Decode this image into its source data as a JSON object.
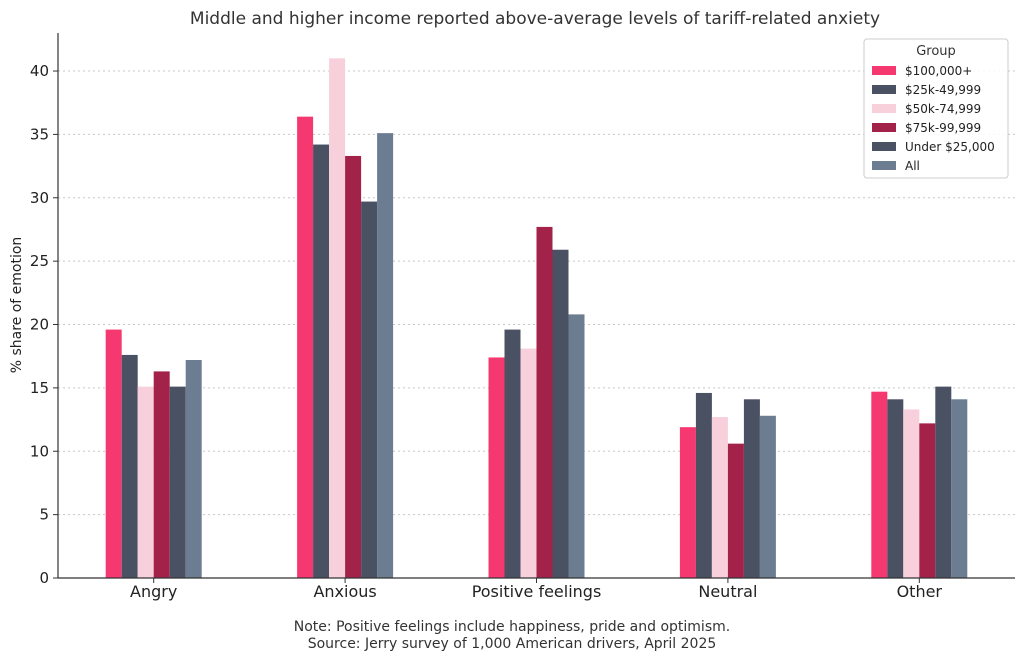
{
  "chart_data": {
    "type": "bar",
    "title": "Middle and higher income reported above-average levels of tariff-related anxiety",
    "xlabel": "",
    "ylabel": "% share of emotion",
    "ylim": [
      0,
      43
    ],
    "yticks": [
      0,
      5,
      10,
      15,
      20,
      25,
      30,
      35,
      40
    ],
    "grid": true,
    "legend_placement": "top-right",
    "legend_title": "Group",
    "categories": [
      "Angry",
      "Anxious",
      "Positive feelings",
      "Neutral",
      "Other"
    ],
    "series": [
      {
        "name": "$100,000+",
        "color": "#f5386f",
        "values": [
          19.6,
          36.4,
          17.4,
          11.9,
          14.7
        ]
      },
      {
        "name": "$25k-49,999",
        "color": "#4a5163",
        "values": [
          17.6,
          34.2,
          19.6,
          14.6,
          14.1
        ]
      },
      {
        "name": "$50k-74,999",
        "color": "#f7d0dc",
        "values": [
          15.1,
          41.0,
          18.1,
          12.7,
          13.3
        ]
      },
      {
        "name": "$75k-99,999",
        "color": "#a3224a",
        "values": [
          16.3,
          33.3,
          27.7,
          10.6,
          12.2
        ]
      },
      {
        "name": "Under $25,000",
        "color": "#4a5163",
        "values": [
          15.1,
          29.7,
          25.9,
          14.1,
          15.1
        ]
      },
      {
        "name": "All",
        "color": "#6c7d92",
        "values": [
          17.2,
          35.1,
          20.8,
          12.8,
          14.1
        ]
      }
    ],
    "note": "Note: Positive feelings include happiness, pride and optimism.",
    "source": "Source: Jerry survey of 1,000 American drivers, April 2025"
  }
}
